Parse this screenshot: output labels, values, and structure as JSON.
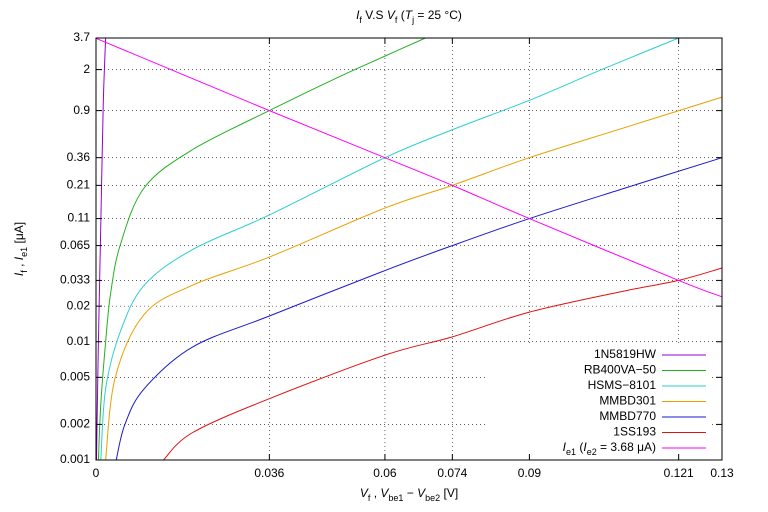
{
  "chart_data": {
    "type": "line",
    "title": [
      {
        "text": "I",
        "style": "italic"
      },
      {
        "text": "f",
        "style": "sub"
      },
      {
        "text": " V.S ",
        "style": "normal"
      },
      {
        "text": "V",
        "style": "italic"
      },
      {
        "text": "f",
        "style": "sub"
      },
      {
        "text": "  (",
        "style": "normal"
      },
      {
        "text": "T",
        "style": "italic"
      },
      {
        "text": "j",
        "style": "sub"
      },
      {
        "text": " = 25 °C)",
        "style": "normal"
      }
    ],
    "x_label": [
      {
        "text": "V",
        "style": "italic"
      },
      {
        "text": "f",
        "style": "sub"
      },
      {
        "text": " ,  ",
        "style": "normal"
      },
      {
        "text": "V",
        "style": "italic"
      },
      {
        "text": "be1",
        "style": "sub"
      },
      {
        "text": " − ",
        "style": "normal"
      },
      {
        "text": "V",
        "style": "italic"
      },
      {
        "text": "be2",
        "style": "sub"
      },
      {
        "text": " [V]",
        "style": "normal"
      }
    ],
    "y_label": [
      {
        "text": "I",
        "style": "italic"
      },
      {
        "text": "f",
        "style": "sub"
      },
      {
        "text": " ,  ",
        "style": "normal"
      },
      {
        "text": "I",
        "style": "italic"
      },
      {
        "text": "e1",
        "style": "sub"
      },
      {
        "text": " [μA]",
        "style": "normal"
      }
    ],
    "xlim": [
      0,
      0.13
    ],
    "ylim": [
      0.001,
      3.7
    ],
    "ylog": true,
    "grid": true,
    "legend": "lower-right",
    "xticks": [
      0,
      0.036,
      0.06,
      0.074,
      0.09,
      0.121,
      0.13
    ],
    "yticks": [
      0.001,
      0.002,
      0.005,
      0.01,
      0.02,
      0.033,
      0.065,
      0.11,
      0.21,
      0.36,
      0.9,
      2,
      3.7
    ],
    "series": [
      {
        "name": "1N5819HW",
        "color": "#9400d3",
        "x": [
          0.0001,
          0.0005,
          0.001,
          0.0015,
          0.002
        ],
        "values": [
          0.001,
          0.01,
          0.1,
          1,
          3.7
        ]
      },
      {
        "name": "RB400VA−50",
        "color": "#22b022",
        "x": [
          0.0005,
          0.001,
          0.002,
          0.003,
          0.005,
          0.01,
          0.02,
          0.036,
          0.05,
          0.06,
          0.0684
        ],
        "values": [
          0.001,
          0.003,
          0.01,
          0.025,
          0.065,
          0.2,
          0.42,
          0.9,
          1.7,
          2.6,
          3.7
        ]
      },
      {
        "name": "HSMS−8101",
        "color": "#2ccece",
        "x": [
          0.001,
          0.002,
          0.005,
          0.01,
          0.02,
          0.036,
          0.06,
          0.074,
          0.09,
          0.105,
          0.121
        ],
        "values": [
          0.001,
          0.004,
          0.012,
          0.03,
          0.06,
          0.118,
          0.36,
          0.62,
          1.1,
          2,
          3.7
        ]
      },
      {
        "name": "MMBD301",
        "color": "#e8a000",
        "x": [
          0.002,
          0.004,
          0.01,
          0.02,
          0.036,
          0.06,
          0.074,
          0.09,
          0.11,
          0.13
        ],
        "values": [
          0.001,
          0.005,
          0.017,
          0.03,
          0.052,
          0.135,
          0.21,
          0.36,
          0.65,
          1.17
        ]
      },
      {
        "name": "MMBD770",
        "color": "#1a1acc",
        "x": [
          0.0042,
          0.006,
          0.01,
          0.02,
          0.036,
          0.06,
          0.074,
          0.09,
          0.11,
          0.13
        ],
        "values": [
          0.001,
          0.002,
          0.004,
          0.009,
          0.0165,
          0.04,
          0.065,
          0.11,
          0.2,
          0.36
        ]
      },
      {
        "name": "1SS193",
        "color": "#e01010",
        "x": [
          0.014,
          0.02,
          0.036,
          0.06,
          0.074,
          0.09,
          0.11,
          0.121,
          0.13
        ],
        "values": [
          0.001,
          0.0017,
          0.0033,
          0.0077,
          0.011,
          0.0178,
          0.027,
          0.033,
          0.042
        ]
      },
      {
        "name": [
          {
            "text": "I",
            "style": "italic"
          },
          {
            "text": "e1",
            "style": "sub"
          },
          {
            "text": " (",
            "style": "normal"
          },
          {
            "text": "I",
            "style": "italic"
          },
          {
            "text": "e2",
            "style": "sub"
          },
          {
            "text": " = 3.68 μA)",
            "style": "normal"
          }
        ],
        "color": "#ff00ff",
        "x": [
          0,
          0.036,
          0.06,
          0.074,
          0.09,
          0.121,
          0.13
        ],
        "values": [
          3.68,
          0.9,
          0.36,
          0.21,
          0.11,
          0.033,
          0.024
        ]
      }
    ]
  }
}
